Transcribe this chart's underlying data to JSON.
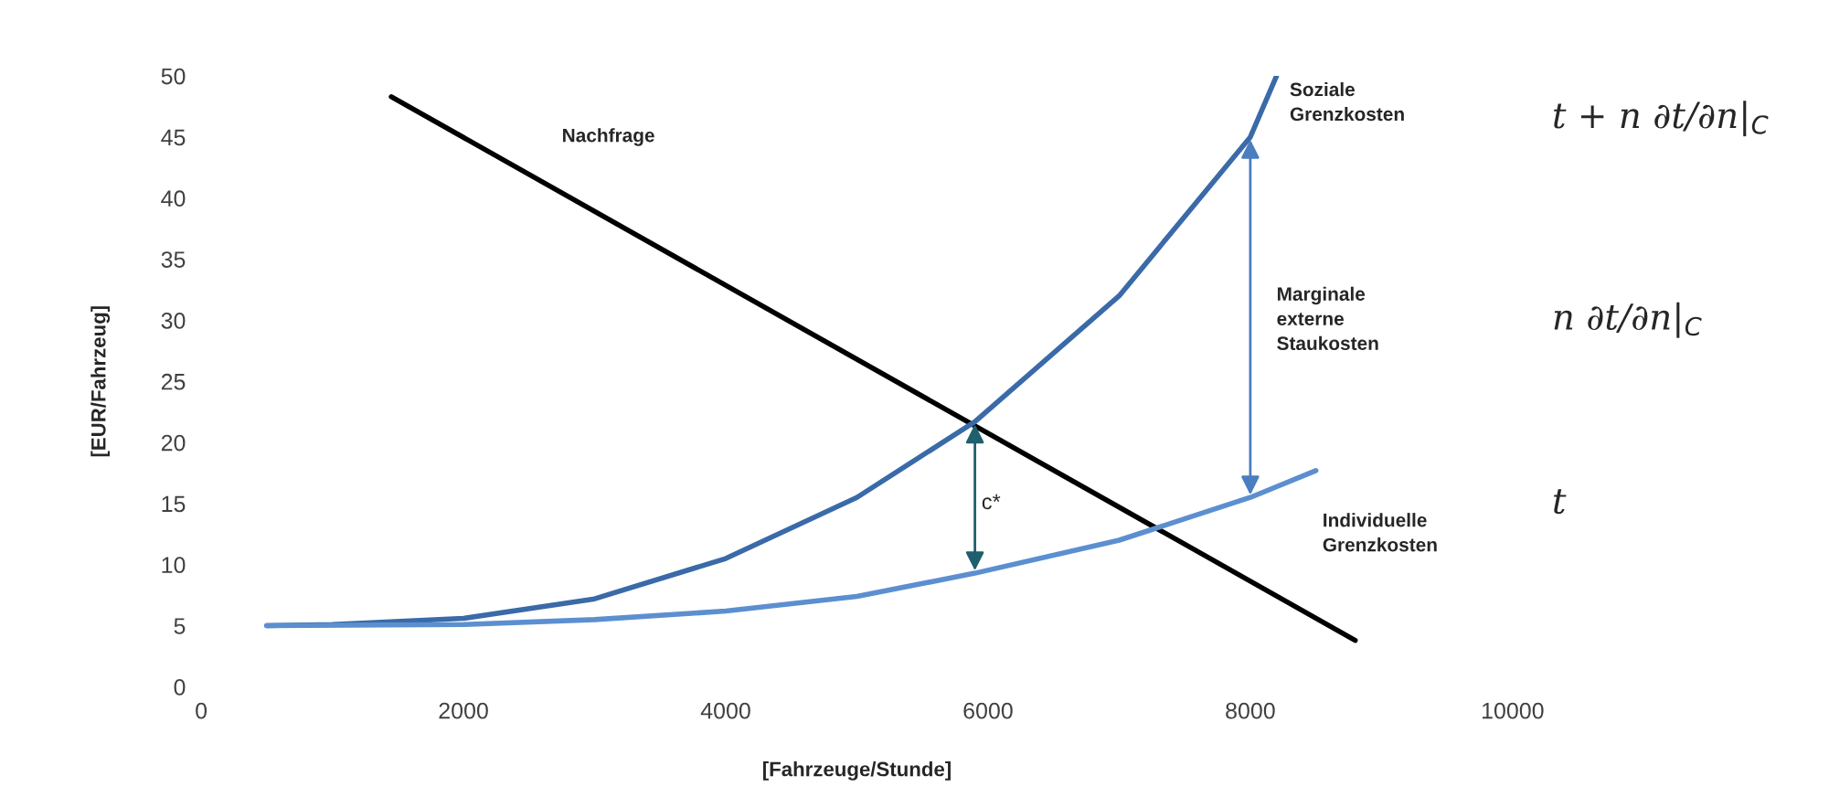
{
  "chart_data": {
    "type": "line",
    "xlabel": "[Fahrzeuge/Stunde]",
    "ylabel": "[EUR/Fahrzeug]",
    "xlim": [
      0,
      10000
    ],
    "xticks": [
      0,
      2000,
      4000,
      6000,
      8000,
      10000
    ],
    "ylim": [
      0,
      50
    ],
    "yticks": [
      0,
      5,
      10,
      15,
      20,
      25,
      30,
      35,
      40,
      45,
      50
    ],
    "grid": false,
    "legend": false,
    "marker": "none",
    "line_style": "solid",
    "series": [
      {
        "color": "#000000",
        "x": [
          1450,
          8800
        ],
        "values": [
          48.3,
          3.8
        ]
      },
      {
        "color": "#3a6aa8",
        "x": [
          500,
          1000,
          2000,
          3000,
          4000,
          5000,
          5900,
          7000,
          8000,
          8200
        ],
        "values": [
          5,
          5.1,
          5.6,
          7.2,
          10.5,
          15.5,
          21.7,
          32,
          45,
          50
        ]
      },
      {
        "color": "#5b8fd0",
        "x": [
          500,
          2000,
          3000,
          4000,
          5000,
          5900,
          7000,
          8000,
          8500
        ],
        "values": [
          5,
          5.1,
          5.5,
          6.2,
          7.4,
          9.3,
          12,
          15.5,
          17.7
        ]
      }
    ],
    "annotations": [
      "Nachfrage",
      "Soziale\nGrenzkosten",
      "Marginale\nexterne\nStaukosten",
      "Individuelle\nGrenzkosten",
      "c*",
      "t + n ∂t/∂n|$_{C}$",
      "n ∂t/∂n|$_{C}$",
      "t"
    ]
  }
}
